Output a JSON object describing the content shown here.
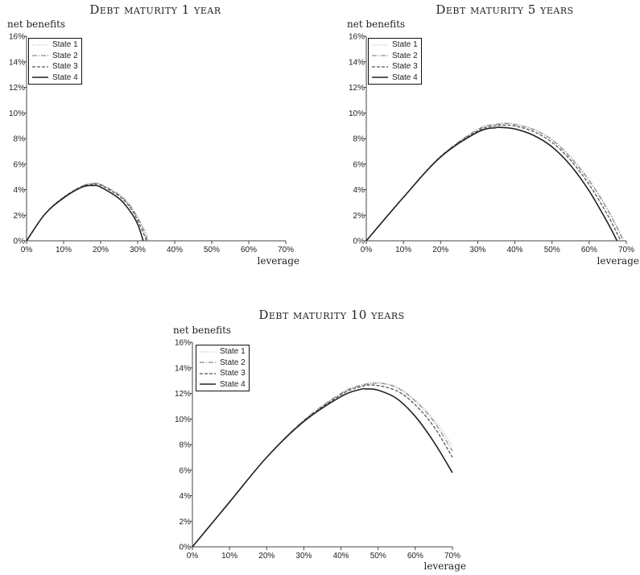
{
  "legend_entries": [
    "State 1",
    "State 2",
    "State 3",
    "State 4"
  ],
  "series_styles": [
    {
      "color": "#b8b8b8",
      "dash": "1 2"
    },
    {
      "color": "#8c8c8c",
      "dash": "6 2 1 2"
    },
    {
      "color": "#555555",
      "dash": "4 2"
    },
    {
      "color": "#222222",
      "dash": ""
    }
  ],
  "chart_data": [
    {
      "type": "line",
      "title": "Debt maturity 1 year",
      "xlabel": "leverage",
      "ylabel": "net benefits",
      "xlim": [
        0,
        70
      ],
      "ylim": [
        0,
        16
      ],
      "x_ticks": [
        "0%",
        "10%",
        "20%",
        "30%",
        "40%",
        "50%",
        "60%",
        "70%"
      ],
      "y_ticks": [
        "0%",
        "2%",
        "4%",
        "6%",
        "8%",
        "10%",
        "12%",
        "14%",
        "16%"
      ],
      "grid": false,
      "legend_position": "top-left",
      "series": [
        {
          "name": "State 1",
          "x": [
            0,
            5,
            10,
            15,
            18,
            20,
            25,
            28,
            30,
            32,
            32.8
          ],
          "y": [
            0,
            2.1,
            3.4,
            4.3,
            4.52,
            4.45,
            3.65,
            2.8,
            1.9,
            0.8,
            0
          ]
        },
        {
          "name": "State 2",
          "x": [
            0,
            5,
            10,
            15,
            18,
            20,
            25,
            28,
            30,
            32,
            32.6
          ],
          "y": [
            0,
            2.1,
            3.4,
            4.28,
            4.48,
            4.4,
            3.6,
            2.72,
            1.8,
            0.6,
            0
          ]
        },
        {
          "name": "State 3",
          "x": [
            0,
            5,
            10,
            15,
            18,
            20,
            25,
            28,
            30,
            32,
            32.3
          ],
          "y": [
            0,
            2.1,
            3.4,
            4.25,
            4.42,
            4.35,
            3.5,
            2.6,
            1.6,
            0.3,
            0
          ]
        },
        {
          "name": "State 4",
          "x": [
            0,
            5,
            10,
            15,
            18,
            20,
            25,
            28,
            30,
            31.5
          ],
          "y": [
            0,
            2.1,
            3.35,
            4.2,
            4.32,
            4.2,
            3.3,
            2.3,
            1.3,
            0
          ]
        }
      ]
    },
    {
      "type": "line",
      "title": "Debt maturity 5 years",
      "xlabel": "leverage",
      "ylabel": "net benefits",
      "xlim": [
        0,
        70
      ],
      "ylim": [
        0,
        16
      ],
      "x_ticks": [
        "0%",
        "10%",
        "20%",
        "30%",
        "40%",
        "50%",
        "60%",
        "70%"
      ],
      "y_ticks": [
        "0%",
        "2%",
        "4%",
        "6%",
        "8%",
        "10%",
        "12%",
        "14%",
        "16%"
      ],
      "grid": false,
      "legend_position": "top-left",
      "series": [
        {
          "name": "State 1",
          "x": [
            0,
            10,
            20,
            30,
            35,
            38,
            40,
            45,
            50,
            55,
            60,
            65,
            69.5
          ],
          "y": [
            0,
            3.4,
            6.6,
            8.75,
            9.15,
            9.22,
            9.15,
            8.75,
            7.95,
            6.6,
            4.8,
            2.5,
            0
          ]
        },
        {
          "name": "State 2",
          "x": [
            0,
            10,
            20,
            30,
            35,
            38,
            40,
            45,
            50,
            55,
            60,
            65,
            69.2
          ],
          "y": [
            0,
            3.4,
            6.6,
            8.7,
            9.1,
            9.17,
            9.1,
            8.7,
            7.9,
            6.5,
            4.7,
            2.4,
            0
          ]
        },
        {
          "name": "State 3",
          "x": [
            0,
            10,
            20,
            30,
            35,
            37,
            40,
            45,
            50,
            55,
            60,
            65,
            68.5
          ],
          "y": [
            0,
            3.4,
            6.58,
            8.6,
            9.0,
            9.05,
            8.98,
            8.55,
            7.7,
            6.3,
            4.4,
            2.0,
            0
          ]
        },
        {
          "name": "State 4",
          "x": [
            0,
            10,
            20,
            30,
            35,
            36,
            40,
            45,
            50,
            55,
            60,
            65,
            67.5
          ],
          "y": [
            0,
            3.4,
            6.55,
            8.5,
            8.85,
            8.87,
            8.75,
            8.25,
            7.35,
            5.9,
            3.9,
            1.4,
            0
          ]
        }
      ]
    },
    {
      "type": "line",
      "title": "Debt maturity 10 years",
      "xlabel": "leverage",
      "ylabel": "net benefits",
      "xlim": [
        0,
        70
      ],
      "ylim": [
        0,
        16
      ],
      "x_ticks": [
        "0%",
        "10%",
        "20%",
        "30%",
        "40%",
        "50%",
        "60%",
        "70%"
      ],
      "y_ticks": [
        "0%",
        "2%",
        "4%",
        "6%",
        "8%",
        "10%",
        "12%",
        "14%",
        "16%"
      ],
      "grid": false,
      "legend_position": "top-left",
      "series": [
        {
          "name": "State 1",
          "x": [
            0,
            10,
            20,
            30,
            40,
            45,
            50,
            55,
            60,
            65,
            70
          ],
          "y": [
            0,
            3.5,
            7.0,
            9.9,
            12.0,
            12.65,
            12.85,
            12.5,
            11.5,
            10.0,
            7.9
          ]
        },
        {
          "name": "State 2",
          "x": [
            0,
            10,
            20,
            30,
            40,
            45,
            50,
            55,
            60,
            65,
            70
          ],
          "y": [
            0,
            3.5,
            7.0,
            9.9,
            12.0,
            12.6,
            12.8,
            12.45,
            11.4,
            9.8,
            7.5
          ]
        },
        {
          "name": "State 3",
          "x": [
            0,
            10,
            20,
            30,
            40,
            45,
            49,
            55,
            60,
            65,
            70
          ],
          "y": [
            0,
            3.5,
            7.0,
            9.85,
            11.9,
            12.5,
            12.65,
            12.2,
            11.1,
            9.4,
            7.0
          ]
        },
        {
          "name": "State 4",
          "x": [
            0,
            10,
            20,
            30,
            40,
            45,
            47,
            50,
            55,
            60,
            65,
            70
          ],
          "y": [
            0,
            3.5,
            7.0,
            9.8,
            11.75,
            12.3,
            12.35,
            12.25,
            11.6,
            10.2,
            8.2,
            5.8
          ]
        }
      ]
    }
  ]
}
